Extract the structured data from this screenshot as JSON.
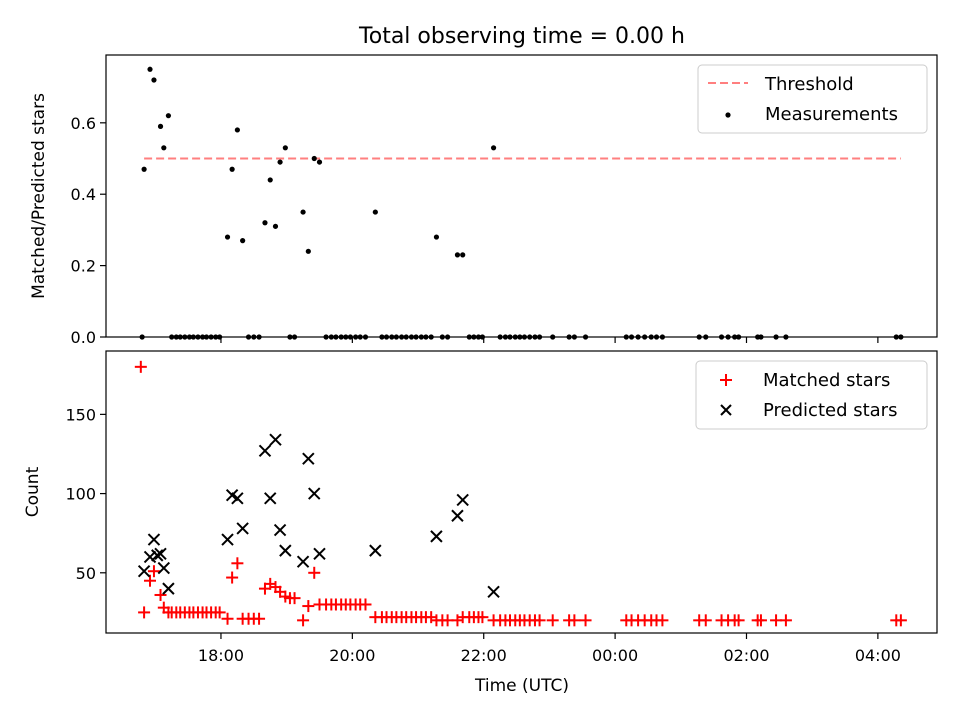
{
  "chart_data": [
    {
      "type": "scatter",
      "title": "Total observing time = 0.00 h",
      "xlabel": "",
      "ylabel": "Matched/Predicted stars",
      "x_unit": "hours UTC since 00:00 of first night (values > 24 are next day)",
      "xlim": [
        16.25,
        28.9
      ],
      "ylim": [
        0,
        0.79
      ],
      "yticks": [
        0.0,
        0.2,
        0.4,
        0.6
      ],
      "ytick_labels": [
        "0.0",
        "0.2",
        "0.4",
        "0.6"
      ],
      "legend": {
        "placement": "top-right",
        "entries": [
          "Threshold",
          "Measurements"
        ]
      },
      "threshold": {
        "name": "Threshold",
        "value": 0.5,
        "x_start": 16.83,
        "x_end": 28.35,
        "color": "#ff7f7f",
        "style": "dashed"
      },
      "series": [
        {
          "name": "Measurements",
          "color": "#000000",
          "marker": "dot",
          "points": [
            [
              16.8,
              0.0
            ],
            [
              16.83,
              0.47
            ],
            [
              16.92,
              0.75
            ],
            [
              16.98,
              0.72
            ],
            [
              17.08,
              0.59
            ],
            [
              17.13,
              0.53
            ],
            [
              17.2,
              0.62
            ],
            [
              17.25,
              0.0
            ],
            [
              17.32,
              0.0
            ],
            [
              17.38,
              0.0
            ],
            [
              17.45,
              0.0
            ],
            [
              17.52,
              0.0
            ],
            [
              17.58,
              0.0
            ],
            [
              17.65,
              0.0
            ],
            [
              17.72,
              0.0
            ],
            [
              17.78,
              0.0
            ],
            [
              17.85,
              0.0
            ],
            [
              17.92,
              0.0
            ],
            [
              17.98,
              0.0
            ],
            [
              18.1,
              0.28
            ],
            [
              18.17,
              0.47
            ],
            [
              18.25,
              0.58
            ],
            [
              18.33,
              0.27
            ],
            [
              18.42,
              0.0
            ],
            [
              18.5,
              0.0
            ],
            [
              18.58,
              0.0
            ],
            [
              18.67,
              0.32
            ],
            [
              18.75,
              0.44
            ],
            [
              18.83,
              0.31
            ],
            [
              18.9,
              0.49
            ],
            [
              18.98,
              0.53
            ],
            [
              19.05,
              0.0
            ],
            [
              19.12,
              0.0
            ],
            [
              19.25,
              0.35
            ],
            [
              19.33,
              0.24
            ],
            [
              19.42,
              0.5
            ],
            [
              19.5,
              0.49
            ],
            [
              19.6,
              0.0
            ],
            [
              19.68,
              0.0
            ],
            [
              19.75,
              0.0
            ],
            [
              19.83,
              0.0
            ],
            [
              19.9,
              0.0
            ],
            [
              19.97,
              0.0
            ],
            [
              20.05,
              0.0
            ],
            [
              20.12,
              0.0
            ],
            [
              20.2,
              0.0
            ],
            [
              20.35,
              0.35
            ],
            [
              20.45,
              0.0
            ],
            [
              20.52,
              0.0
            ],
            [
              20.6,
              0.0
            ],
            [
              20.67,
              0.0
            ],
            [
              20.75,
              0.0
            ],
            [
              20.82,
              0.0
            ],
            [
              20.9,
              0.0
            ],
            [
              20.97,
              0.0
            ],
            [
              21.05,
              0.0
            ],
            [
              21.12,
              0.0
            ],
            [
              21.2,
              0.0
            ],
            [
              21.28,
              0.28
            ],
            [
              21.37,
              0.0
            ],
            [
              21.45,
              0.0
            ],
            [
              21.6,
              0.23
            ],
            [
              21.68,
              0.23
            ],
            [
              21.78,
              0.0
            ],
            [
              21.85,
              0.0
            ],
            [
              21.92,
              0.0
            ],
            [
              21.98,
              0.0
            ],
            [
              22.15,
              0.53
            ],
            [
              22.25,
              0.0
            ],
            [
              22.33,
              0.0
            ],
            [
              22.4,
              0.0
            ],
            [
              22.48,
              0.0
            ],
            [
              22.55,
              0.0
            ],
            [
              22.62,
              0.0
            ],
            [
              22.7,
              0.0
            ],
            [
              22.78,
              0.0
            ],
            [
              22.85,
              0.0
            ],
            [
              23.05,
              0.0
            ],
            [
              23.3,
              0.0
            ],
            [
              23.38,
              0.0
            ],
            [
              23.55,
              0.0
            ],
            [
              24.17,
              0.0
            ],
            [
              24.25,
              0.0
            ],
            [
              24.35,
              0.0
            ],
            [
              24.45,
              0.0
            ],
            [
              24.55,
              0.0
            ],
            [
              24.63,
              0.0
            ],
            [
              24.72,
              0.0
            ],
            [
              25.28,
              0.0
            ],
            [
              25.38,
              0.0
            ],
            [
              25.62,
              0.0
            ],
            [
              25.72,
              0.0
            ],
            [
              25.82,
              0.0
            ],
            [
              25.88,
              0.0
            ],
            [
              26.17,
              0.0
            ],
            [
              26.22,
              0.0
            ],
            [
              26.45,
              0.0
            ],
            [
              26.6,
              0.0
            ],
            [
              28.28,
              0.0
            ],
            [
              28.35,
              0.0
            ]
          ]
        }
      ]
    },
    {
      "type": "scatter",
      "title": "",
      "xlabel": "Time (UTC)",
      "ylabel": "Count",
      "x_unit": "hours UTC since 00:00 of first night (values > 24 are next day)",
      "xlim": [
        16.25,
        28.9
      ],
      "ylim": [
        12,
        190
      ],
      "xticks": [
        18,
        20,
        22,
        24,
        26,
        28
      ],
      "xtick_labels": [
        "18:00",
        "20:00",
        "22:00",
        "00:00",
        "02:00",
        "04:00"
      ],
      "yticks": [
        50,
        100,
        150
      ],
      "ytick_labels": [
        "50",
        "100",
        "150"
      ],
      "legend": {
        "placement": "top-right",
        "entries": [
          "Matched stars",
          "Predicted stars"
        ]
      },
      "series": [
        {
          "name": "Matched stars",
          "color": "#ff0000",
          "marker": "plus",
          "points": [
            [
              16.78,
              180
            ],
            [
              16.83,
              25
            ],
            [
              16.92,
              45
            ],
            [
              16.98,
              51
            ],
            [
              17.08,
              36
            ],
            [
              17.13,
              28
            ],
            [
              17.2,
              25
            ],
            [
              17.25,
              25
            ],
            [
              17.32,
              25
            ],
            [
              17.38,
              25
            ],
            [
              17.45,
              25
            ],
            [
              17.52,
              25
            ],
            [
              17.58,
              25
            ],
            [
              17.65,
              25
            ],
            [
              17.72,
              25
            ],
            [
              17.78,
              25
            ],
            [
              17.85,
              25
            ],
            [
              17.92,
              25
            ],
            [
              17.98,
              25
            ],
            [
              18.1,
              21
            ],
            [
              18.17,
              47
            ],
            [
              18.25,
              56
            ],
            [
              18.33,
              21
            ],
            [
              18.42,
              21
            ],
            [
              18.5,
              21
            ],
            [
              18.58,
              21
            ],
            [
              18.67,
              40
            ],
            [
              18.75,
              43
            ],
            [
              18.83,
              41
            ],
            [
              18.9,
              38
            ],
            [
              18.98,
              35
            ],
            [
              19.05,
              34
            ],
            [
              19.12,
              34
            ],
            [
              19.25,
              20
            ],
            [
              19.33,
              29
            ],
            [
              19.42,
              50
            ],
            [
              19.5,
              30
            ],
            [
              19.6,
              30
            ],
            [
              19.68,
              30
            ],
            [
              19.75,
              30
            ],
            [
              19.83,
              30
            ],
            [
              19.9,
              30
            ],
            [
              19.97,
              30
            ],
            [
              20.05,
              30
            ],
            [
              20.12,
              30
            ],
            [
              20.2,
              30
            ],
            [
              20.35,
              22
            ],
            [
              20.45,
              22
            ],
            [
              20.52,
              22
            ],
            [
              20.6,
              22
            ],
            [
              20.67,
              22
            ],
            [
              20.75,
              22
            ],
            [
              20.82,
              22
            ],
            [
              20.9,
              22
            ],
            [
              20.97,
              22
            ],
            [
              21.05,
              22
            ],
            [
              21.12,
              22
            ],
            [
              21.2,
              22
            ],
            [
              21.28,
              20
            ],
            [
              21.37,
              20
            ],
            [
              21.45,
              20
            ],
            [
              21.6,
              20
            ],
            [
              21.68,
              22
            ],
            [
              21.78,
              22
            ],
            [
              21.85,
              22
            ],
            [
              21.92,
              22
            ],
            [
              21.98,
              22
            ],
            [
              22.15,
              20
            ],
            [
              22.25,
              20
            ],
            [
              22.33,
              20
            ],
            [
              22.4,
              20
            ],
            [
              22.48,
              20
            ],
            [
              22.55,
              20
            ],
            [
              22.62,
              20
            ],
            [
              22.7,
              20
            ],
            [
              22.78,
              20
            ],
            [
              22.85,
              20
            ],
            [
              23.05,
              20
            ],
            [
              23.3,
              20
            ],
            [
              23.38,
              20
            ],
            [
              23.55,
              20
            ],
            [
              24.17,
              20
            ],
            [
              24.25,
              20
            ],
            [
              24.35,
              20
            ],
            [
              24.45,
              20
            ],
            [
              24.55,
              20
            ],
            [
              24.63,
              20
            ],
            [
              24.72,
              20
            ],
            [
              25.28,
              20
            ],
            [
              25.38,
              20
            ],
            [
              25.62,
              20
            ],
            [
              25.72,
              20
            ],
            [
              25.82,
              20
            ],
            [
              25.88,
              20
            ],
            [
              26.17,
              20
            ],
            [
              26.22,
              20
            ],
            [
              26.45,
              20
            ],
            [
              26.6,
              20
            ],
            [
              28.28,
              20
            ],
            [
              28.35,
              20
            ]
          ]
        },
        {
          "name": "Predicted stars",
          "color": "#000000",
          "marker": "x",
          "points": [
            [
              16.83,
              51
            ],
            [
              16.92,
              60
            ],
            [
              16.98,
              71
            ],
            [
              17.03,
              61
            ],
            [
              17.08,
              62
            ],
            [
              17.13,
              53
            ],
            [
              17.2,
              40
            ],
            [
              18.1,
              71
            ],
            [
              18.17,
              99
            ],
            [
              18.25,
              97
            ],
            [
              18.33,
              78
            ],
            [
              18.67,
              127
            ],
            [
              18.75,
              97
            ],
            [
              18.83,
              134
            ],
            [
              18.9,
              77
            ],
            [
              18.98,
              64
            ],
            [
              19.25,
              57
            ],
            [
              19.33,
              122
            ],
            [
              19.42,
              100
            ],
            [
              19.5,
              62
            ],
            [
              20.35,
              64
            ],
            [
              21.28,
              73
            ],
            [
              21.6,
              86
            ],
            [
              21.68,
              96
            ],
            [
              22.15,
              38
            ]
          ]
        }
      ]
    }
  ]
}
